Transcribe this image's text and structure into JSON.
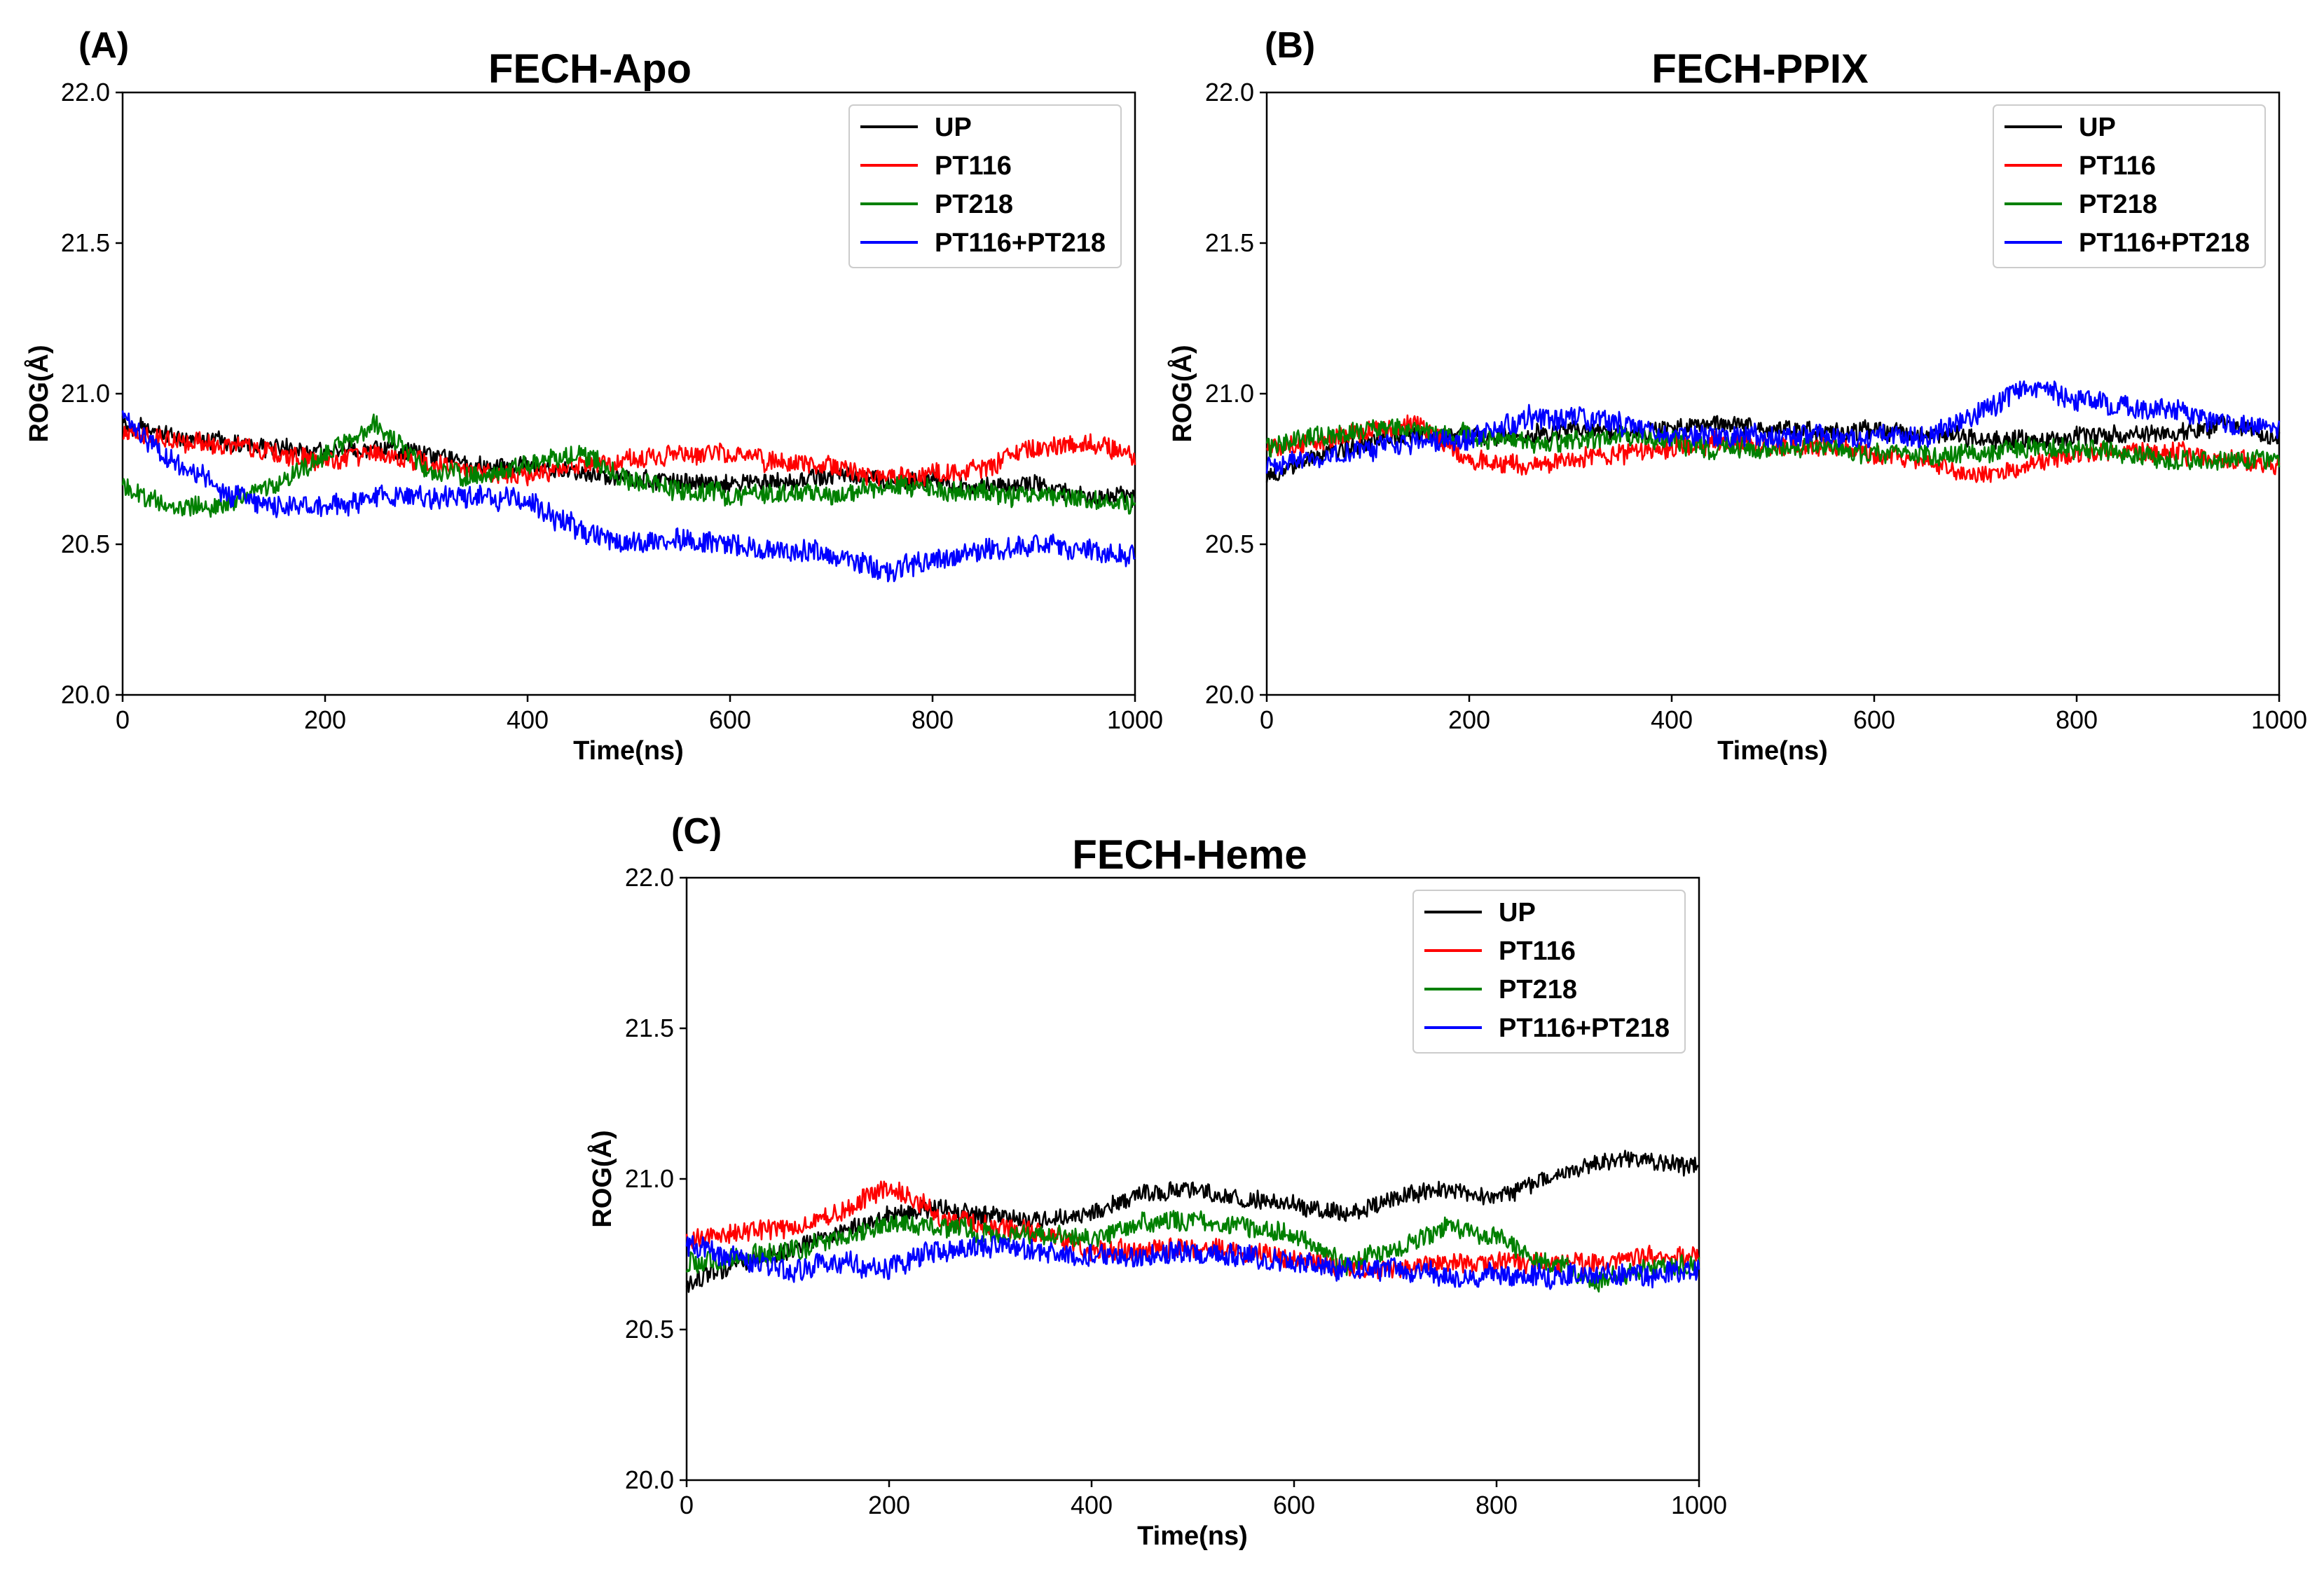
{
  "figure": {
    "panels": [
      {
        "panel_label": "(A)",
        "title": "FECH-Apo"
      },
      {
        "panel_label": "(B)",
        "title": "FECH-PPIX"
      },
      {
        "panel_label": "(C)",
        "title": "FECH-Heme"
      }
    ]
  },
  "chart_data": [
    {
      "type": "line",
      "panel": "(A)",
      "title": "FECH-Apo",
      "xlabel": "Time(ns)",
      "ylabel": "ROG(Å)",
      "xlim": [
        0,
        1000
      ],
      "ylim": [
        20.0,
        22.0
      ],
      "xticks": [
        0,
        200,
        400,
        600,
        800,
        1000
      ],
      "yticks": [
        "20.0",
        "20.5",
        "21.0",
        "21.5",
        "22.0"
      ],
      "legend_position": "top-right",
      "x": [
        0,
        50,
        100,
        150,
        200,
        250,
        300,
        350,
        400,
        450,
        500,
        550,
        600,
        650,
        700,
        750,
        800,
        850,
        900,
        950,
        1000
      ],
      "series": [
        {
          "name": "UP",
          "color": "#000000",
          "noise": 0.04,
          "values": [
            20.9,
            20.86,
            20.84,
            20.82,
            20.8,
            20.82,
            20.8,
            20.76,
            20.76,
            20.73,
            20.72,
            20.71,
            20.7,
            20.71,
            20.73,
            20.72,
            20.71,
            20.69,
            20.7,
            20.66,
            20.66
          ]
        },
        {
          "name": "PT116",
          "color": "#ff0000",
          "noise": 0.045,
          "values": [
            20.87,
            20.85,
            20.83,
            20.8,
            20.78,
            20.8,
            20.77,
            20.74,
            20.73,
            20.76,
            20.78,
            20.8,
            20.8,
            20.77,
            20.76,
            20.72,
            20.73,
            20.75,
            20.82,
            20.84,
            20.8
          ]
        },
        {
          "name": "PT218",
          "color": "#008000",
          "noise": 0.045,
          "values": [
            20.7,
            20.62,
            20.63,
            20.7,
            20.8,
            20.9,
            20.75,
            20.72,
            20.77,
            20.8,
            20.72,
            20.68,
            20.66,
            20.68,
            20.66,
            20.7,
            20.68,
            20.67,
            20.66,
            20.65,
            20.63
          ]
        },
        {
          "name": "PT116+PT218",
          "color": "#0000ff",
          "noise": 0.05,
          "values": [
            20.92,
            20.78,
            20.67,
            20.63,
            20.62,
            20.66,
            20.66,
            20.66,
            20.64,
            20.55,
            20.5,
            20.52,
            20.5,
            20.48,
            20.47,
            20.41,
            20.45,
            20.48,
            20.5,
            20.48,
            20.46
          ]
        }
      ]
    },
    {
      "type": "line",
      "panel": "(B)",
      "title": "FECH-PPIX",
      "xlabel": "Time(ns)",
      "ylabel": "ROG(Å)",
      "xlim": [
        0,
        1000
      ],
      "ylim": [
        20.0,
        22.0
      ],
      "xticks": [
        0,
        200,
        400,
        600,
        800,
        1000
      ],
      "yticks": [
        "20.0",
        "20.5",
        "21.0",
        "21.5",
        "22.0"
      ],
      "legend_position": "top-right",
      "x": [
        0,
        50,
        100,
        150,
        200,
        250,
        300,
        350,
        400,
        450,
        500,
        550,
        600,
        650,
        700,
        750,
        800,
        850,
        900,
        950,
        1000
      ],
      "series": [
        {
          "name": "UP",
          "color": "#000000",
          "noise": 0.04,
          "values": [
            20.72,
            20.8,
            20.84,
            20.86,
            20.86,
            20.86,
            20.88,
            20.87,
            20.88,
            20.9,
            20.88,
            20.87,
            20.88,
            20.86,
            20.86,
            20.84,
            20.86,
            20.86,
            20.87,
            20.9,
            20.85
          ]
        },
        {
          "name": "PT116",
          "color": "#ff0000",
          "noise": 0.045,
          "values": [
            20.82,
            20.84,
            20.88,
            20.9,
            20.78,
            20.76,
            20.78,
            20.8,
            20.82,
            20.84,
            20.82,
            20.82,
            20.8,
            20.78,
            20.72,
            20.76,
            20.8,
            20.8,
            20.8,
            20.78,
            20.76
          ]
        },
        {
          "name": "PT218",
          "color": "#008000",
          "noise": 0.045,
          "values": [
            20.82,
            20.86,
            20.88,
            20.88,
            20.86,
            20.84,
            20.84,
            20.86,
            20.84,
            20.82,
            20.82,
            20.83,
            20.8,
            20.8,
            20.8,
            20.82,
            20.82,
            20.8,
            20.78,
            20.78,
            20.78
          ]
        },
        {
          "name": "PT116+PT218",
          "color": "#0000ff",
          "noise": 0.05,
          "values": [
            20.76,
            20.78,
            20.82,
            20.84,
            20.85,
            20.92,
            20.92,
            20.9,
            20.86,
            20.86,
            20.86,
            20.86,
            20.86,
            20.86,
            20.92,
            21.02,
            20.98,
            20.96,
            20.94,
            20.9,
            20.88
          ]
        }
      ]
    },
    {
      "type": "line",
      "panel": "(C)",
      "title": "FECH-Heme",
      "xlabel": "Time(ns)",
      "ylabel": "ROG(Å)",
      "xlim": [
        0,
        1000
      ],
      "ylim": [
        20.0,
        22.0
      ],
      "xticks": [
        0,
        200,
        400,
        600,
        800,
        1000
      ],
      "yticks": [
        "20.0",
        "20.5",
        "21.0",
        "21.5",
        "22.0"
      ],
      "legend_position": "top-right",
      "x": [
        0,
        50,
        100,
        150,
        200,
        250,
        300,
        350,
        400,
        450,
        500,
        550,
        600,
        650,
        700,
        750,
        800,
        850,
        900,
        950,
        1000
      ],
      "series": [
        {
          "name": "UP",
          "color": "#000000",
          "noise": 0.04,
          "values": [
            20.65,
            20.72,
            20.76,
            20.82,
            20.88,
            20.9,
            20.88,
            20.86,
            20.88,
            20.95,
            20.96,
            20.94,
            20.92,
            20.88,
            20.94,
            20.96,
            20.94,
            21.0,
            21.06,
            21.06,
            21.04
          ]
        },
        {
          "name": "PT116",
          "color": "#ff0000",
          "noise": 0.045,
          "values": [
            20.8,
            20.82,
            20.84,
            20.88,
            20.98,
            20.88,
            20.84,
            20.82,
            20.76,
            20.76,
            20.78,
            20.76,
            20.74,
            20.7,
            20.7,
            20.72,
            20.72,
            20.72,
            20.72,
            20.74,
            20.74
          ]
        },
        {
          "name": "PT218",
          "color": "#008000",
          "noise": 0.045,
          "values": [
            20.72,
            20.74,
            20.76,
            20.8,
            20.86,
            20.84,
            20.82,
            20.82,
            20.8,
            20.86,
            20.86,
            20.84,
            20.82,
            20.72,
            20.76,
            20.84,
            20.8,
            20.72,
            20.66,
            20.7,
            20.72
          ]
        },
        {
          "name": "PT116+PT218",
          "color": "#0000ff",
          "noise": 0.05,
          "values": [
            20.78,
            20.74,
            20.7,
            20.72,
            20.7,
            20.76,
            20.78,
            20.76,
            20.74,
            20.74,
            20.76,
            20.74,
            20.72,
            20.7,
            20.7,
            20.68,
            20.68,
            20.68,
            20.68,
            20.68,
            20.7
          ]
        }
      ]
    }
  ]
}
